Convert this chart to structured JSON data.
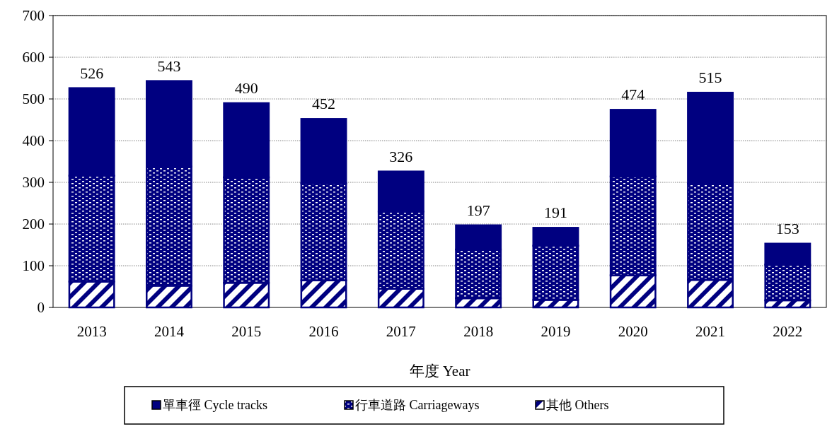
{
  "chart_data": {
    "type": "bar",
    "stacked": true,
    "xlabel": "年度 Year",
    "categories": [
      "2013",
      "2014",
      "2015",
      "2016",
      "2017",
      "2018",
      "2019",
      "2020",
      "2021",
      "2022"
    ],
    "series": [
      {
        "name": "其他 Others",
        "color": "#000080",
        "values": [
          62,
          52,
          59,
          65,
          45,
          22,
          18,
          77,
          66,
          17
        ]
      },
      {
        "name": "行車道路 Carriageways",
        "color": "#000080",
        "values": [
          254,
          286,
          253,
          233,
          185,
          117,
          130,
          237,
          231,
          86
        ]
      },
      {
        "name": "單車徑 Cycle tracks",
        "color": "#000080",
        "values": [
          210,
          205,
          178,
          154,
          96,
          58,
          43,
          160,
          218,
          50
        ]
      }
    ],
    "totals": [
      "526",
      "543",
      "490",
      "452",
      "326",
      "197",
      "191",
      "474",
      "515",
      "153"
    ],
    "ylim": [
      0,
      700
    ],
    "yticks": [
      0,
      100,
      200,
      300,
      400,
      500,
      600,
      700
    ],
    "grid": "y",
    "legend": "bottom"
  }
}
